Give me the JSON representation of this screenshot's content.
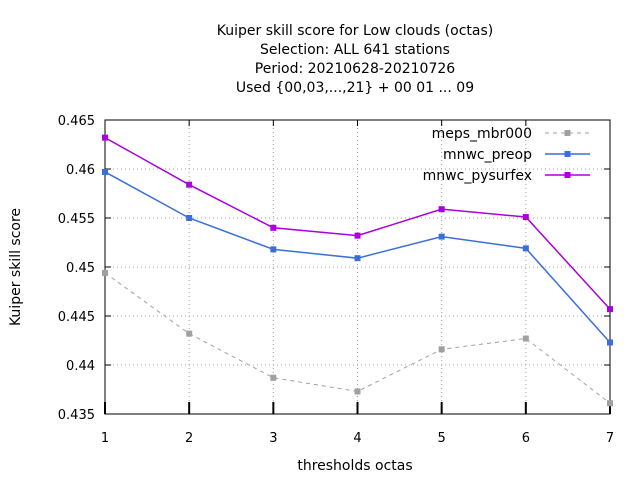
{
  "chart_data": {
    "type": "line",
    "title_lines": [
      "Kuiper skill score  for Low clouds (octas)",
      "Selection: ALL    641 stations",
      "Period: 20210628-20210726",
      "Used {00,03,...,21} + 00 01 ... 09"
    ],
    "xlabel": "thresholds octas",
    "ylabel": "Kuiper skill score",
    "x": [
      1,
      2,
      3,
      4,
      5,
      6,
      7
    ],
    "xlim": [
      1,
      7
    ],
    "ylim": [
      0.435,
      0.465
    ],
    "xticks": [
      "1",
      "2",
      "3",
      "4",
      "5",
      "6",
      "7"
    ],
    "yticks": [
      "0.435",
      "0.44",
      "0.445",
      "0.45",
      "0.455",
      "0.46",
      "0.465"
    ],
    "grid": true,
    "legend_position": "top-right",
    "series": [
      {
        "name": "meps_mbr000",
        "color": "#a0a0a0",
        "dashed": true,
        "values": [
          0.4494,
          0.4432,
          0.4387,
          0.4373,
          0.4416,
          0.4427,
          0.4361
        ]
      },
      {
        "name": "mnwc_preop",
        "color": "#3a6fd8",
        "dashed": false,
        "values": [
          0.4597,
          0.455,
          0.4518,
          0.4509,
          0.4531,
          0.4519,
          0.4423
        ]
      },
      {
        "name": "mnwc_pysurfex",
        "color": "#aa00dd",
        "dashed": false,
        "values": [
          0.4632,
          0.4584,
          0.454,
          0.4532,
          0.4559,
          0.4551,
          0.4457
        ]
      }
    ]
  }
}
